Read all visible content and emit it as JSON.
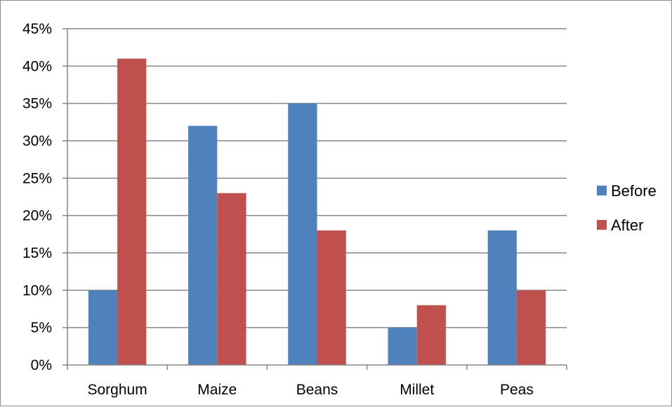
{
  "chart_data": {
    "type": "bar",
    "categories": [
      "Sorghum",
      "Maize",
      "Beans",
      "Millet",
      "Peas"
    ],
    "series": [
      {
        "name": "Before",
        "values": [
          10,
          32,
          35,
          5,
          18
        ],
        "color": "#4f81bd"
      },
      {
        "name": "After",
        "values": [
          41,
          23,
          18,
          8,
          10
        ],
        "color": "#c0504d"
      }
    ],
    "ylim": [
      0,
      45
    ],
    "ytick_step": 5,
    "ytick_labels": [
      "0%",
      "5%",
      "10%",
      "15%",
      "20%",
      "25%",
      "30%",
      "35%",
      "40%",
      "45%"
    ],
    "grid": true,
    "legend_position": "right",
    "gridline_color": "#868686",
    "axis_color": "#868686"
  }
}
